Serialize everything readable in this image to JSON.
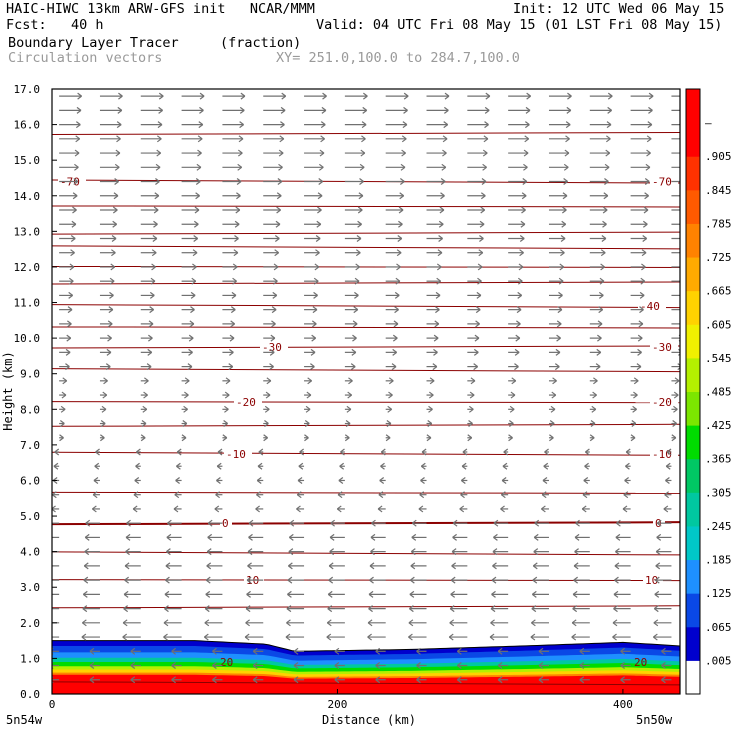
{
  "header": {
    "model": "HAIC-HIWC 13km ARW-GFS init   NCAR/MMM",
    "init": "Init: 12 UTC Wed 06 May 15",
    "fcst": "Fcst:   40 h",
    "valid": "Valid: 04 UTC Fri 08 May 15 (01 LST Fri 08 May 15)",
    "field": "Boundary Layer Tracer",
    "field_units": "(fraction)",
    "overlay": "Circulation vectors",
    "xy": "XY= 251.0,100.0 to 284.7,100.0"
  },
  "chart_data": {
    "type": "heatmap",
    "ylabel": "Height (km)",
    "xlabel": "Distance (km)",
    "x_left_label": "5n54w",
    "x_right_label": "5n50w",
    "xlim": [
      0,
      440
    ],
    "ylim": [
      0,
      17
    ],
    "y_ticks": [
      "0.0",
      "1.0",
      "2.0",
      "3.0",
      "4.0",
      "5.0",
      "6.0",
      "7.0",
      "8.0",
      "9.0",
      "10.0",
      "11.0",
      "12.0",
      "13.0",
      "14.0",
      "15.0",
      "16.0",
      "17.0"
    ],
    "x_ticks": [
      {
        "value": 0,
        "label": "0"
      },
      {
        "value": 200,
        "label": "200"
      },
      {
        "value": 400,
        "label": "400"
      }
    ],
    "colorbar_labels": [
      ".005",
      ".065",
      ".125",
      ".185",
      ".245",
      ".305",
      ".365",
      ".425",
      ".485",
      ".545",
      ".605",
      ".665",
      ".725",
      ".785",
      ".845",
      ".905",
      "–"
    ],
    "colorbar_colors": [
      "#ffffff",
      "#0000cd",
      "#0a48e6",
      "#1e90ff",
      "#00c8c8",
      "#00c8a0",
      "#00c864",
      "#00dc00",
      "#7ce600",
      "#b4f000",
      "#f0f000",
      "#ffd200",
      "#ffaa00",
      "#ff8200",
      "#ff5a00",
      "#ff3200",
      "#ff0000",
      "#ff0000"
    ],
    "bl_tracer_top_km": [
      {
        "x": 0,
        "y": 1.5
      },
      {
        "x": 100,
        "y": 1.5
      },
      {
        "x": 150,
        "y": 1.4
      },
      {
        "x": 170,
        "y": 1.2
      },
      {
        "x": 250,
        "y": 1.25
      },
      {
        "x": 330,
        "y": 1.35
      },
      {
        "x": 400,
        "y": 1.45
      },
      {
        "x": 440,
        "y": 1.35
      }
    ],
    "temperature_contours_c": [
      {
        "label": "-70",
        "y": 14.4
      },
      {
        "label": "-40",
        "y": 10.9
      },
      {
        "label": "-30",
        "y": 9.75
      },
      {
        "label": "-20",
        "y": 8.2
      },
      {
        "label": "-10",
        "y": 6.75
      },
      {
        "label": "0",
        "y": 4.8
      },
      {
        "label": "10",
        "y": 3.2
      },
      {
        "label": "20",
        "y": 0.9
      }
    ],
    "wind_direction_by_height": [
      {
        "y_min": 0,
        "y_max": 5.0,
        "direction": "easterly"
      },
      {
        "y_min": 5.0,
        "y_max": 9.0,
        "direction": "light"
      },
      {
        "y_min": 9.0,
        "y_max": 17.0,
        "direction": "westerly"
      }
    ]
  }
}
